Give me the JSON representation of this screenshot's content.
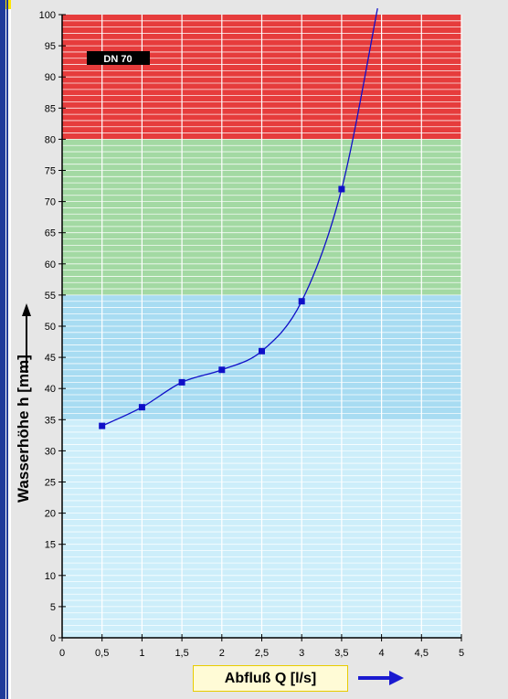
{
  "chart_data": {
    "type": "line",
    "title": "",
    "xlabel": "Abfluß Q [l/s]",
    "ylabel": "Wasserhöhe h [mm]",
    "xlim": [
      0,
      5
    ],
    "ylim": [
      0,
      100
    ],
    "x_ticks": [
      "0",
      "0,5",
      "1",
      "1,5",
      "2",
      "2,5",
      "3",
      "3,5",
      "4",
      "4,5",
      "5"
    ],
    "y_ticks": [
      "0",
      "5",
      "10",
      "15",
      "20",
      "25",
      "30",
      "35",
      "40",
      "45",
      "50",
      "55",
      "60",
      "65",
      "70",
      "75",
      "80",
      "85",
      "90",
      "95",
      "100"
    ],
    "grid": true,
    "annotation": "DN 70",
    "bands": [
      {
        "from": 0,
        "to": 35,
        "color": "#cdeefa"
      },
      {
        "from": 35,
        "to": 55,
        "color": "#a8dcf2"
      },
      {
        "from": 55,
        "to": 80,
        "color": "#a3d9a3"
      },
      {
        "from": 80,
        "to": 100,
        "color": "#e63c3c"
      }
    ],
    "series": [
      {
        "color": "#1010c8",
        "x": [
          0.5,
          1,
          1.5,
          2,
          2.5,
          3,
          3.5
        ],
        "y": [
          34,
          37,
          41,
          43,
          46,
          54,
          72
        ]
      }
    ],
    "curve_extension": {
      "x": [
        3.5,
        3.95
      ],
      "y": [
        72,
        101
      ]
    }
  },
  "colors": {
    "axis": "#000000",
    "line": "#1010c8",
    "arrow": "#1a1ad0"
  }
}
